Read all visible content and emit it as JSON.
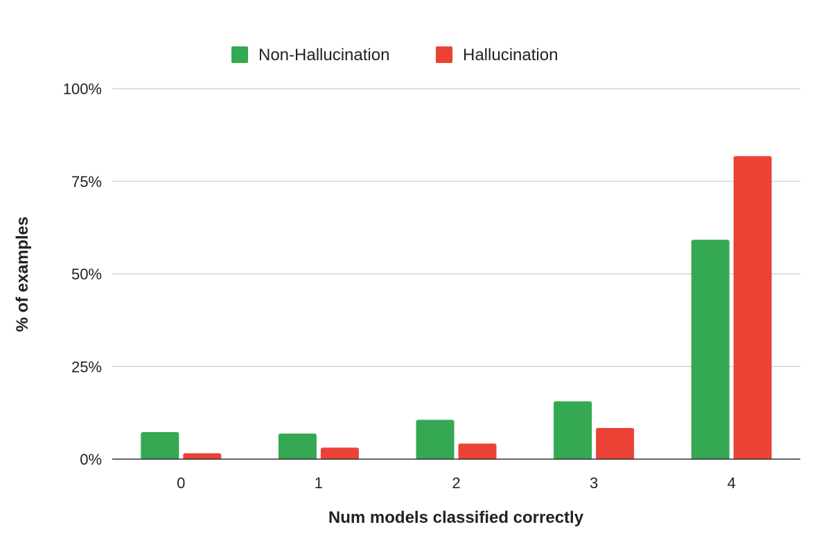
{
  "chart_data": {
    "type": "bar",
    "title": "",
    "xlabel": "Num models classified correctly",
    "ylabel": "% of examples",
    "categories": [
      "0",
      "1",
      "2",
      "3",
      "4"
    ],
    "series": [
      {
        "name": "Non-Hallucination",
        "color": "#34a853",
        "values": [
          7.3,
          6.9,
          10.6,
          15.6,
          59.2
        ]
      },
      {
        "name": "Hallucination",
        "color": "#ea4335",
        "values": [
          1.6,
          3.1,
          4.2,
          8.4,
          81.8
        ]
      }
    ],
    "ylim": [
      0,
      100
    ],
    "yticks": [
      0,
      25,
      50,
      75,
      100
    ],
    "ytick_labels": [
      "0%",
      "25%",
      "50%",
      "75%",
      "100%"
    ],
    "grid": true,
    "legend_position": "top-center"
  }
}
